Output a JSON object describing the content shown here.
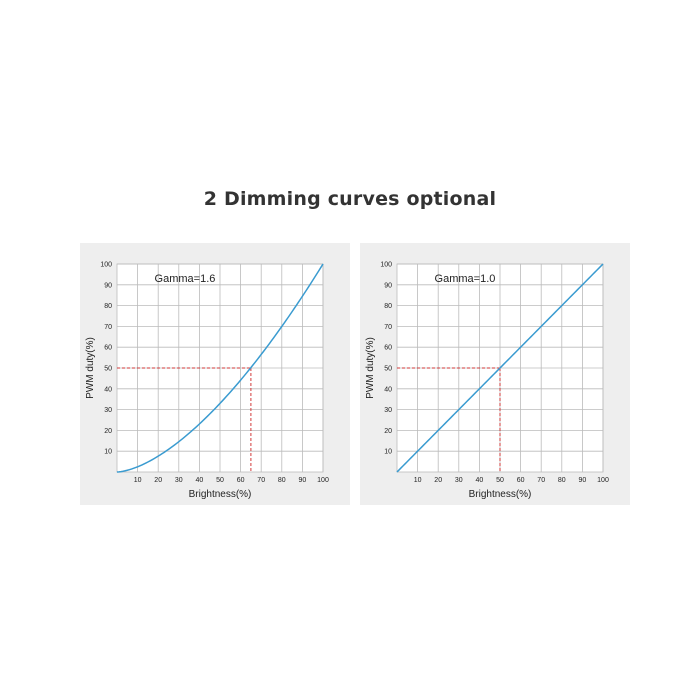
{
  "heading": "2 Dimming curves optional",
  "colors": {
    "curve": "#3a9bd0",
    "guide": "#d23a3a",
    "grid": "#bbbbbb",
    "plot_bg": "#ffffff",
    "panel_bg": "#eeeeee"
  },
  "chart_data": [
    {
      "type": "line",
      "annotation": "Gamma=1.6",
      "xlabel": "Brightness(%)",
      "ylabel": "PWM duty(%)",
      "xlim": [
        0,
        100
      ],
      "ylim": [
        0,
        100
      ],
      "xticks": [
        10,
        20,
        30,
        40,
        50,
        60,
        70,
        80,
        90,
        100
      ],
      "yticks": [
        10,
        20,
        30,
        40,
        50,
        60,
        70,
        80,
        90,
        100
      ],
      "grid": true,
      "gamma": 1.6,
      "x": [
        0,
        10,
        20,
        30,
        40,
        50,
        60,
        70,
        80,
        90,
        100
      ],
      "y": [
        0,
        2.5,
        7.6,
        14.6,
        23.1,
        33.0,
        44.1,
        56.5,
        70.0,
        84.5,
        100
      ],
      "guide_point": {
        "x": 65,
        "y": 50
      }
    },
    {
      "type": "line",
      "annotation": "Gamma=1.0",
      "xlabel": "Brightness(%)",
      "ylabel": "PWM duty(%)",
      "xlim": [
        0,
        100
      ],
      "ylim": [
        0,
        100
      ],
      "xticks": [
        10,
        20,
        30,
        40,
        50,
        60,
        70,
        80,
        90,
        100
      ],
      "yticks": [
        10,
        20,
        30,
        40,
        50,
        60,
        70,
        80,
        90,
        100
      ],
      "grid": true,
      "gamma": 1.0,
      "x": [
        0,
        10,
        20,
        30,
        40,
        50,
        60,
        70,
        80,
        90,
        100
      ],
      "y": [
        0,
        10,
        20,
        30,
        40,
        50,
        60,
        70,
        80,
        90,
        100
      ],
      "guide_point": {
        "x": 50,
        "y": 50
      }
    }
  ]
}
